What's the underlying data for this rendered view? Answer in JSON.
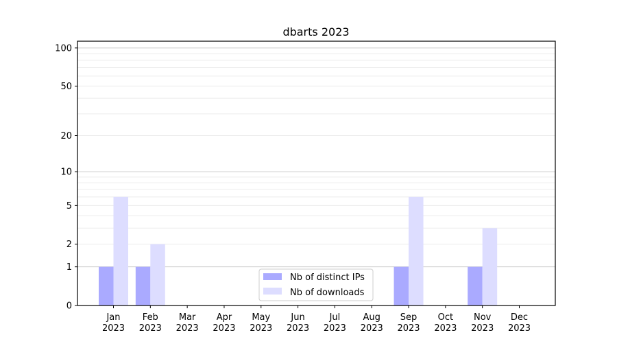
{
  "chart_data": {
    "type": "bar",
    "title": "dbarts 2023",
    "xlabel": "",
    "ylabel": "",
    "categories": [
      "Jan\n2023",
      "Feb\n2023",
      "Mar\n2023",
      "Apr\n2023",
      "May\n2023",
      "Jun\n2023",
      "Jul\n2023",
      "Aug\n2023",
      "Sep\n2023",
      "Oct\n2023",
      "Nov\n2023",
      "Dec\n2023"
    ],
    "series": [
      {
        "name": "Nb of distinct IPs",
        "color": "#aaaaff",
        "values": [
          1,
          1,
          0,
          0,
          0,
          0,
          0,
          0,
          1,
          0,
          1,
          0
        ]
      },
      {
        "name": "Nb of downloads",
        "color": "#ddddff",
        "values": [
          6,
          2,
          0,
          0,
          0,
          0,
          0,
          0,
          6,
          0,
          3,
          0
        ]
      }
    ],
    "yscale": "log(1+y)",
    "yticks": [
      0,
      1,
      2,
      5,
      10,
      20,
      50,
      100
    ],
    "ylim": [
      0,
      113
    ],
    "grid": true,
    "legend": "bottom-center"
  }
}
